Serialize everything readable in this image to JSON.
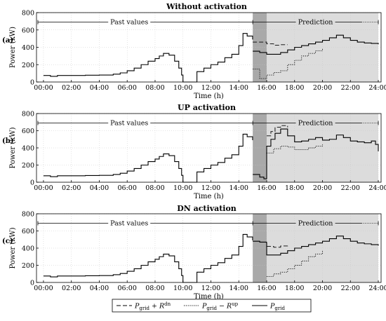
{
  "chart_data": [
    {
      "type": "line",
      "panel_label": "(a)",
      "title": "Without activation",
      "xlabel": "Time (h)",
      "ylabel": "Power (kW)",
      "xlim": [
        -0.5,
        24.2
      ],
      "ylim": [
        0,
        800
      ],
      "yticks": [
        0,
        200,
        400,
        600,
        800
      ],
      "xticks": [
        "00:00",
        "02:00",
        "04:00",
        "06:00",
        "08:00",
        "10:00",
        "12:00",
        "14:00",
        "16:00",
        "18:00",
        "20:00",
        "22:00",
        "24:00"
      ],
      "grid": true,
      "regions": {
        "past_label": "Past values",
        "prediction_label": "Prediction",
        "past_end": 15.0,
        "dark_end": 16.0,
        "pred_end": 24.0,
        "arrow_y": 690
      },
      "series": [
        {
          "name": "P_grid",
          "style": "solid",
          "x": [
            0.0,
            0.5,
            1.0,
            2.0,
            3.0,
            4.0,
            5.0,
            5.5,
            6.0,
            6.5,
            7.0,
            7.5,
            8.0,
            8.3,
            8.6,
            9.0,
            9.4,
            9.7,
            9.9,
            10.0,
            10.4,
            10.5,
            11.0,
            11.5,
            12.0,
            12.5,
            13.0,
            13.5,
            14.0,
            14.3,
            14.6,
            14.99
          ],
          "y": [
            75,
            65,
            75,
            75,
            78,
            80,
            90,
            105,
            130,
            160,
            200,
            240,
            270,
            300,
            330,
            310,
            240,
            160,
            80,
            0,
            0,
            0,
            120,
            160,
            200,
            230,
            280,
            320,
            420,
            560,
            530,
            490
          ]
        },
        {
          "name": "P_grid",
          "style": "solid",
          "x": [
            15.0,
            15.5,
            16.0,
            16.5,
            17.0,
            17.5,
            18.0,
            18.5,
            19.0,
            19.5,
            20.0,
            20.5,
            21.0,
            21.5,
            22.0,
            22.5,
            23.0,
            23.5,
            24.0
          ],
          "y": [
            355,
            340,
            320,
            320,
            340,
            370,
            400,
            420,
            440,
            460,
            480,
            510,
            540,
            510,
            480,
            460,
            450,
            445,
            435
          ]
        },
        {
          "name": "P_grid + R^dn",
          "style": "dashed",
          "x": [
            15.0,
            15.5,
            16.0,
            16.5,
            17.0,
            17.5
          ],
          "y": [
            460,
            460,
            440,
            425,
            430,
            430
          ]
        },
        {
          "name": "P_grid - R^up",
          "style": "dotted",
          "x": [
            15.0,
            15.5,
            16.0,
            16.5,
            17.0,
            17.5,
            18.0,
            18.5,
            19.0,
            19.5,
            20.0
          ],
          "y": [
            150,
            40,
            80,
            110,
            130,
            200,
            250,
            300,
            330,
            360,
            390
          ]
        }
      ]
    },
    {
      "type": "line",
      "panel_label": "(b)",
      "title": "UP activation",
      "xlabel": "Time (h)",
      "ylabel": "Power (kW)",
      "xlim": [
        -0.5,
        24.2
      ],
      "ylim": [
        0,
        800
      ],
      "yticks": [
        0,
        200,
        400,
        600,
        800
      ],
      "xticks": [
        "00:00",
        "02:00",
        "04:00",
        "06:00",
        "08:00",
        "10:00",
        "12:00",
        "14:00",
        "16:00",
        "18:00",
        "20:00",
        "22:00",
        "24:00"
      ],
      "grid": true,
      "regions": {
        "past_label": "Past values",
        "prediction_label": "Prediction",
        "past_end": 15.0,
        "dark_end": 16.0,
        "pred_end": 24.0,
        "arrow_y": 690
      },
      "series": [
        {
          "name": "P_grid",
          "style": "solid",
          "x": [
            0.0,
            0.5,
            1.0,
            2.0,
            3.0,
            4.0,
            5.0,
            5.5,
            6.0,
            6.5,
            7.0,
            7.5,
            8.0,
            8.3,
            8.6,
            9.0,
            9.4,
            9.7,
            9.9,
            10.0,
            10.4,
            10.5,
            11.0,
            11.5,
            12.0,
            12.5,
            13.0,
            13.5,
            14.0,
            14.3,
            14.6,
            14.99
          ],
          "y": [
            75,
            65,
            75,
            75,
            78,
            80,
            90,
            105,
            130,
            160,
            200,
            240,
            270,
            300,
            330,
            310,
            240,
            160,
            80,
            0,
            0,
            0,
            120,
            160,
            200,
            230,
            280,
            320,
            420,
            560,
            530,
            490
          ]
        },
        {
          "name": "P_grid",
          "style": "solid",
          "x": [
            15.0,
            15.5,
            15.8,
            16.0,
            16.3,
            16.6,
            17.0,
            17.5,
            18.0,
            18.5,
            19.0,
            19.5,
            20.0,
            20.5,
            21.0,
            21.5,
            22.0,
            22.5,
            23.0,
            23.5,
            23.8,
            24.0
          ],
          "y": [
            90,
            60,
            40,
            420,
            500,
            570,
            620,
            540,
            470,
            480,
            500,
            520,
            490,
            500,
            550,
            520,
            480,
            470,
            460,
            480,
            440,
            360
          ]
        },
        {
          "name": "P_grid + R^dn",
          "style": "dashed",
          "x": [
            16.0,
            16.3,
            16.6,
            17.0,
            17.5
          ],
          "y": [
            540,
            590,
            640,
            660,
            640
          ]
        },
        {
          "name": "P_grid - R^up",
          "style": "dotted",
          "x": [
            16.0,
            16.5,
            17.0,
            17.5,
            18.0,
            18.5,
            19.0,
            19.5,
            20.0
          ],
          "y": [
            340,
            390,
            420,
            410,
            380,
            380,
            400,
            420,
            440
          ]
        }
      ]
    },
    {
      "type": "line",
      "panel_label": "(c)",
      "title": "DN activation",
      "xlabel": "Time (h)",
      "ylabel": "Power (kW)",
      "xlim": [
        -0.5,
        24.2
      ],
      "ylim": [
        0,
        800
      ],
      "yticks": [
        0,
        200,
        400,
        600,
        800
      ],
      "xticks": [
        "00:00",
        "02:00",
        "04:00",
        "06:00",
        "08:00",
        "10:00",
        "12:00",
        "14:00",
        "16:00",
        "18:00",
        "20:00",
        "22:00",
        "24:00"
      ],
      "grid": true,
      "regions": {
        "past_label": "Past values",
        "prediction_label": "Prediction",
        "past_end": 15.0,
        "dark_end": 16.0,
        "pred_end": 24.0,
        "arrow_y": 690
      },
      "series": [
        {
          "name": "P_grid",
          "style": "solid",
          "x": [
            0.0,
            0.5,
            1.0,
            2.0,
            3.0,
            4.0,
            5.0,
            5.5,
            6.0,
            6.5,
            7.0,
            7.5,
            8.0,
            8.3,
            8.6,
            9.0,
            9.4,
            9.7,
            9.9,
            10.0,
            10.4,
            10.5,
            11.0,
            11.5,
            12.0,
            12.5,
            13.0,
            13.5,
            14.0,
            14.3,
            14.6,
            14.99
          ],
          "y": [
            75,
            65,
            75,
            75,
            78,
            80,
            90,
            105,
            130,
            160,
            200,
            240,
            270,
            300,
            330,
            310,
            240,
            160,
            80,
            0,
            0,
            0,
            120,
            160,
            200,
            230,
            280,
            320,
            420,
            560,
            530,
            490
          ]
        },
        {
          "name": "P_grid",
          "style": "solid",
          "x": [
            15.0,
            15.5,
            15.99,
            16.0,
            16.5,
            17.0,
            17.5,
            18.0,
            18.5,
            19.0,
            19.5,
            20.0,
            20.5,
            21.0,
            21.5,
            22.0,
            22.5,
            23.0,
            23.5,
            24.0
          ],
          "y": [
            480,
            470,
            460,
            320,
            320,
            340,
            370,
            400,
            420,
            440,
            460,
            480,
            510,
            540,
            510,
            480,
            460,
            450,
            440,
            430
          ]
        },
        {
          "name": "P_grid + R^dn",
          "style": "dashed",
          "x": [
            16.0,
            16.5,
            17.0,
            17.5
          ],
          "y": [
            420,
            410,
            425,
            430
          ]
        },
        {
          "name": "P_grid - R^up",
          "style": "dotted",
          "x": [
            16.0,
            16.5,
            17.0,
            17.5,
            18.0,
            18.5,
            19.0,
            19.5,
            20.0
          ],
          "y": [
            70,
            100,
            120,
            160,
            200,
            250,
            300,
            330,
            380
          ]
        }
      ]
    }
  ],
  "legend": {
    "position": "bottom-center",
    "entries": [
      {
        "style": "dashed",
        "base": "P",
        "sub": "grid",
        "op": "+",
        "term": "R",
        "sup": "dn"
      },
      {
        "style": "dotted",
        "base": "P",
        "sub": "grid",
        "op": "−",
        "term": "R",
        "sup": "up"
      },
      {
        "style": "solid",
        "base": "P",
        "sub": "grid"
      }
    ]
  },
  "colors": {
    "line": "#000000",
    "dark_band": "#a9a9a9",
    "light_band": "#dcdcdc",
    "grid": "#c8c8c8"
  }
}
